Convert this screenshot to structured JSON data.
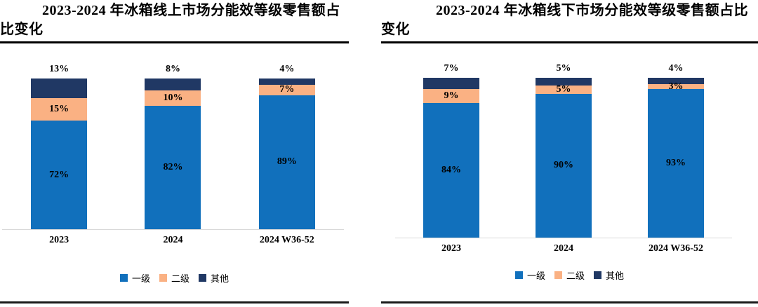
{
  "chart_data": [
    {
      "type": "bar",
      "variant": "stacked-percent-column",
      "title": "2023-2024 年冰箱线上市场分能效等级零售额占比变化",
      "categories": [
        "2023",
        "2024",
        "2024 W36-52"
      ],
      "series": [
        {
          "key": "tier1",
          "name": "一级",
          "color": "#1170BC",
          "values": [
            72,
            82,
            89
          ],
          "label_position": "inside"
        },
        {
          "key": "tier2",
          "name": "二级",
          "color": "#FAB183",
          "values": [
            15,
            10,
            7
          ],
          "label_position": "inside"
        },
        {
          "key": "other",
          "name": "其他",
          "color": "#203864",
          "values": [
            13,
            8,
            4
          ],
          "label_position": "above-bar"
        }
      ],
      "value_suffix": "%",
      "ylim": [
        0,
        100
      ],
      "grid": false,
      "y_axis_visible": false,
      "legend_position": "bottom",
      "baseline_color": "#D9D9D9",
      "label_color": "#000000"
    },
    {
      "type": "bar",
      "variant": "stacked-percent-column",
      "title": "2023-2024 年冰箱线下市场分能效等级零售额占比变化",
      "categories": [
        "2023",
        "2024",
        "2024 W36-52"
      ],
      "series": [
        {
          "key": "tier1",
          "name": "一级",
          "color": "#1170BC",
          "values": [
            84,
            90,
            93
          ],
          "label_position": "inside"
        },
        {
          "key": "tier2",
          "name": "二级",
          "color": "#FAB183",
          "values": [
            9,
            5,
            3
          ],
          "label_position": "inside"
        },
        {
          "key": "other",
          "name": "其他",
          "color": "#203864",
          "values": [
            7,
            5,
            4
          ],
          "label_position": "above-bar"
        }
      ],
      "value_suffix": "%",
      "ylim": [
        0,
        100
      ],
      "grid": false,
      "y_axis_visible": false,
      "legend_position": "bottom",
      "baseline_color": "#D9D9D9",
      "label_color": "#000000"
    }
  ]
}
